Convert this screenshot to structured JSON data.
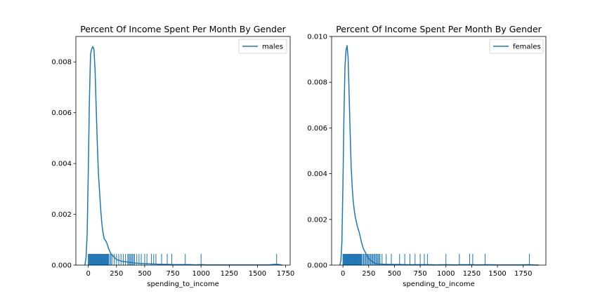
{
  "chart_data": [
    {
      "type": "line",
      "title": "Percent Of Income Spent Per Month By Gender",
      "xlabel": "spending_to_income",
      "ylabel": "",
      "xlim": [
        -110,
        1790
      ],
      "ylim": [
        0,
        0.009
      ],
      "xticks": [
        0,
        250,
        500,
        750,
        1000,
        1250,
        1500,
        1750
      ],
      "xtick_labels": [
        "0",
        "250",
        "500",
        "750",
        "1000",
        "1250",
        "1500",
        "1750"
      ],
      "yticks": [
        0,
        0.002,
        0.004,
        0.006,
        0.008
      ],
      "ytick_labels": [
        "0.000",
        "0.002",
        "0.004",
        "0.006",
        "0.008"
      ],
      "grid": false,
      "legend_position": "top-right",
      "series": [
        {
          "name": "males",
          "color": "#1f77b4",
          "x": [
            -30,
            -20,
            -10,
            0,
            10,
            20,
            30,
            40,
            50,
            60,
            70,
            80,
            90,
            100,
            110,
            120,
            130,
            140,
            150,
            160,
            170,
            180,
            200,
            250,
            300,
            350,
            400,
            450,
            500,
            550,
            600,
            650,
            700,
            750,
            800,
            850,
            900,
            950,
            1000,
            1050,
            1100,
            1200,
            1300,
            1400,
            1500,
            1600,
            1650,
            1680,
            1710,
            1720
          ],
          "y": [
            0.0,
            0.0003,
            0.0012,
            0.0037,
            0.0065,
            0.0083,
            0.0085,
            0.0086,
            0.0085,
            0.0077,
            0.0062,
            0.0048,
            0.0036,
            0.0029,
            0.0022,
            0.00165,
            0.0013,
            0.00105,
            0.00098,
            0.00092,
            0.0008,
            0.00065,
            0.00045,
            0.00022,
            0.00015,
            0.00012,
            9e-05,
            7e-05,
            6e-05,
            5e-05,
            4e-05,
            3e-05,
            3e-05,
            2e-05,
            2e-05,
            2e-05,
            2e-05,
            1e-05,
            2e-05,
            1e-05,
            1e-05,
            1e-05,
            1e-05,
            1e-05,
            1e-05,
            1e-05,
            3e-05,
            3e-05,
            1e-05,
            0.0
          ]
        }
      ],
      "rug": [
        0,
        5,
        10,
        15,
        20,
        25,
        30,
        35,
        40,
        45,
        50,
        55,
        60,
        65,
        70,
        75,
        80,
        85,
        90,
        95,
        100,
        105,
        110,
        115,
        120,
        125,
        130,
        135,
        140,
        145,
        150,
        155,
        160,
        165,
        170,
        175,
        180,
        190,
        200,
        210,
        230,
        250,
        270,
        290,
        310,
        330,
        350,
        360,
        370,
        380,
        390,
        400,
        410,
        430,
        450,
        470,
        500,
        520,
        560,
        580,
        600,
        650,
        700,
        740,
        860,
        1000,
        1670
      ]
    },
    {
      "type": "line",
      "title": "Percent Of Income Spent Per Month By Gender",
      "xlabel": "spending_to_income",
      "ylabel": "",
      "xlim": [
        -110,
        1970
      ],
      "ylim": [
        0,
        0.01
      ],
      "xticks": [
        0,
        250,
        500,
        750,
        1000,
        1250,
        1500,
        1750
      ],
      "xtick_labels": [
        "0",
        "250",
        "500",
        "750",
        "1000",
        "1250",
        "1500",
        "1750"
      ],
      "yticks": [
        0,
        0.002,
        0.004,
        0.006,
        0.008,
        0.01
      ],
      "ytick_labels": [
        "0.000",
        "0.002",
        "0.004",
        "0.006",
        "0.008",
        "0.010"
      ],
      "grid": false,
      "legend_position": "top-right",
      "series": [
        {
          "name": "females",
          "color": "#1f77b4",
          "x": [
            -30,
            -20,
            -10,
            0,
            10,
            20,
            30,
            40,
            50,
            60,
            70,
            80,
            90,
            100,
            110,
            120,
            130,
            140,
            150,
            160,
            170,
            180,
            200,
            250,
            300,
            330,
            350,
            400,
            450,
            500,
            550,
            600,
            650,
            700,
            750,
            800,
            850,
            900,
            1000,
            1100,
            1150,
            1200,
            1250,
            1300,
            1400,
            1500,
            1600,
            1700,
            1800,
            1850,
            1900
          ],
          "y": [
            0.0,
            0.0002,
            0.001,
            0.0035,
            0.0066,
            0.0087,
            0.0094,
            0.0096,
            0.0091,
            0.0075,
            0.0058,
            0.0043,
            0.0034,
            0.0028,
            0.0024,
            0.0021,
            0.0019,
            0.0017,
            0.00155,
            0.0014,
            0.0012,
            0.001,
            0.0007,
            0.00028,
            0.0001,
            6e-05,
            5e-05,
            4e-05,
            3e-05,
            3e-05,
            3e-05,
            2e-05,
            2e-05,
            2e-05,
            2e-05,
            2e-05,
            2e-05,
            1e-05,
            2e-05,
            1e-05,
            2e-05,
            2e-05,
            2e-05,
            1e-05,
            2e-05,
            1e-05,
            1e-05,
            1e-05,
            2e-05,
            1e-05,
            0.0
          ]
        }
      ],
      "rug": [
        0,
        5,
        10,
        15,
        20,
        25,
        30,
        35,
        40,
        45,
        50,
        55,
        60,
        65,
        70,
        75,
        80,
        85,
        90,
        95,
        100,
        105,
        110,
        115,
        120,
        125,
        130,
        135,
        140,
        145,
        150,
        155,
        160,
        165,
        170,
        175,
        180,
        190,
        200,
        210,
        220,
        230,
        240,
        250,
        260,
        270,
        280,
        290,
        300,
        310,
        320,
        330,
        340,
        350,
        360,
        380,
        420,
        470,
        550,
        600,
        650,
        700,
        750,
        790,
        820,
        1000,
        1130,
        1230,
        1260,
        1380,
        1810
      ]
    }
  ]
}
